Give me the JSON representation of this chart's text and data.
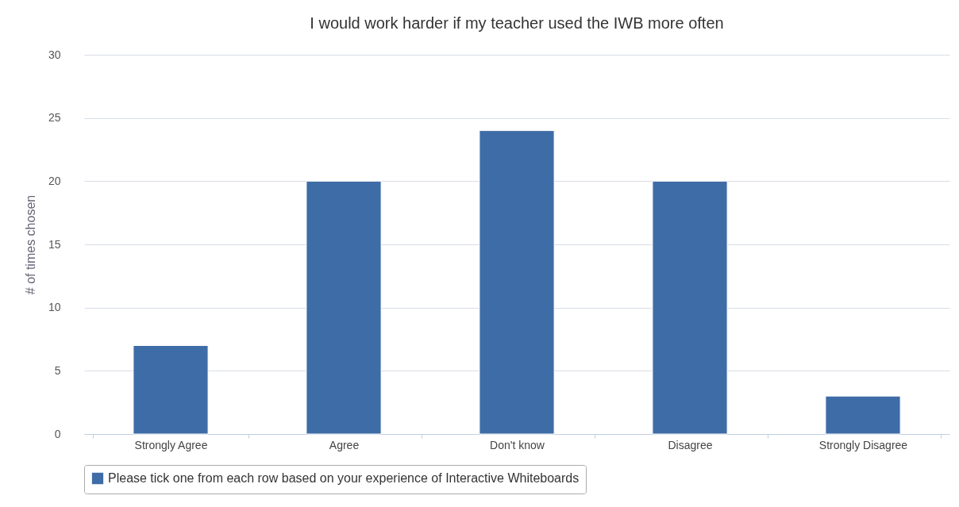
{
  "chart_data": {
    "type": "bar",
    "title": "I would work harder if my teacher used the IWB more often",
    "ylabel": "# of times chosen",
    "categories": [
      "Strongly Agree",
      "Agree",
      "Don't know",
      "Disagree",
      "Strongly Disagree"
    ],
    "series": [
      {
        "name": "Please tick one from each row based on your experience of Interactive Whiteboards",
        "color": "#3e6ca6",
        "values": [
          7,
          20,
          24,
          20,
          3
        ]
      }
    ],
    "ylim": [
      0,
      30
    ],
    "yticks": [
      0,
      5,
      10,
      15,
      20,
      25,
      30
    ],
    "grid": "y",
    "legend": "bottom"
  }
}
